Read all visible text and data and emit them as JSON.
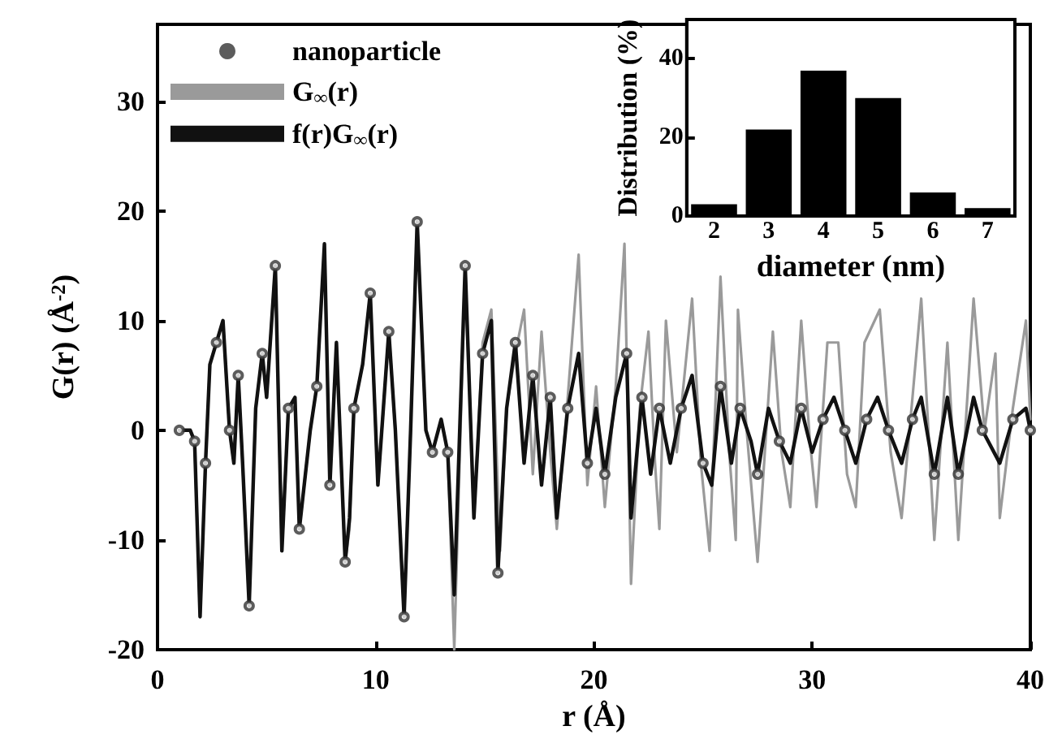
{
  "chart_data": [
    {
      "type": "line",
      "xlabel": "r (Å)",
      "ylabel": "G(r) (Å$^{-2}$)",
      "xlim": [
        0,
        40
      ],
      "ylim": [
        -20,
        37
      ],
      "xticks": [
        0,
        10,
        20,
        30,
        40
      ],
      "yticks": [
        -20,
        -10,
        0,
        10,
        20,
        30
      ],
      "legend": "top left",
      "series": [
        {
          "name": "nanoparticle",
          "type": "scatter",
          "marker": "circle",
          "color": "#333333",
          "x": [
            1.0,
            1.7,
            2.2,
            2.7,
            3.3,
            3.7,
            4.2,
            4.8,
            5.4,
            6.0,
            6.5,
            7.3,
            7.9,
            8.6,
            9.0,
            9.75,
            10.6,
            11.3,
            11.9,
            12.6,
            13.3,
            14.1,
            14.9,
            15.6,
            16.4,
            17.2,
            18.0,
            18.8,
            19.7,
            20.5,
            21.5,
            22.2,
            23.0,
            24.0,
            25.0,
            25.8,
            26.7,
            27.5,
            28.5,
            29.5,
            30.5,
            31.5,
            32.5,
            33.5,
            34.6,
            35.6,
            36.7,
            37.8,
            39.2,
            40.0
          ],
          "values": [
            0,
            -1,
            -3,
            8,
            0,
            5,
            -16,
            7,
            15,
            2,
            -9,
            4,
            -5,
            -12,
            2,
            12.5,
            9,
            -17,
            19,
            -2,
            -2,
            15,
            7,
            -13,
            8,
            5,
            3,
            2,
            -3,
            -4,
            7,
            3,
            2,
            2,
            -3,
            4,
            2,
            -4,
            -1,
            2,
            1,
            0,
            1,
            0,
            1,
            -4,
            -4,
            0,
            1,
            0
          ]
        },
        {
          "name": "G$_{∞}$(r)",
          "type": "line",
          "color": "#9a9a9a",
          "x": [
            1.0,
            1.5,
            1.7,
            1.95,
            2.2,
            2.4,
            2.7,
            3.0,
            3.3,
            3.5,
            3.7,
            3.9,
            4.2,
            4.5,
            4.8,
            5.0,
            5.4,
            5.7,
            6.0,
            6.3,
            6.5,
            7.0,
            7.3,
            7.65,
            7.9,
            8.2,
            8.6,
            8.8,
            9.0,
            9.4,
            9.75,
            10.1,
            10.6,
            10.9,
            11.3,
            11.6,
            11.9,
            12.3,
            12.6,
            13.0,
            13.3,
            13.6,
            14.1,
            14.5,
            14.9,
            15.3,
            15.7,
            16.0,
            16.4,
            16.8,
            17.2,
            17.6,
            18.0,
            18.3,
            18.8,
            19.3,
            19.7,
            20.1,
            20.5,
            21.0,
            21.4,
            21.7,
            22.1,
            22.5,
            22.8,
            23.0,
            23.3,
            23.8,
            24.5,
            24.9,
            25.3,
            25.8,
            26.2,
            26.5,
            26.6,
            27.0,
            27.5,
            28.2,
            28.6,
            29.0,
            29.5,
            29.9,
            30.2,
            30.7,
            31.2,
            31.6,
            32.0,
            32.4,
            33.1,
            33.6,
            34.1,
            34.6,
            35.0,
            35.6,
            36.2,
            36.7,
            37.4,
            37.9,
            38.4,
            38.6,
            39.2,
            39.8,
            40.0
          ],
          "values": [
            0,
            0,
            -1,
            -17,
            -3,
            6,
            8,
            10,
            0,
            -3,
            5,
            -3,
            -16,
            2,
            7,
            3,
            15,
            -11,
            2,
            3,
            -9,
            0,
            4,
            17,
            -5,
            8,
            -12,
            -9,
            2,
            6,
            12.5,
            -5,
            9,
            0,
            -17,
            0,
            19,
            0,
            -2,
            1,
            -2,
            -20,
            15,
            -8,
            8,
            11,
            -11,
            2,
            7,
            11,
            -4,
            9,
            -2,
            -9,
            3,
            16,
            -5,
            4,
            -7,
            4,
            17,
            -14,
            2,
            9,
            -3,
            -9,
            10,
            -2,
            12,
            -3,
            -11,
            14,
            -2,
            -10,
            11,
            0,
            -12,
            9,
            -2,
            -7,
            10,
            -1,
            -7,
            8,
            8,
            -4,
            -7,
            8,
            11,
            -2,
            -8,
            3,
            12,
            -10,
            8,
            -10,
            12,
            0,
            7,
            -8,
            2,
            10,
            1
          ]
        },
        {
          "name": "f(r)G$_{∞}$(r)",
          "type": "line",
          "color": "#111111",
          "x": [
            1.0,
            1.5,
            1.7,
            1.95,
            2.2,
            2.4,
            2.7,
            3.0,
            3.3,
            3.5,
            3.7,
            3.9,
            4.2,
            4.5,
            4.8,
            5.0,
            5.4,
            5.7,
            6.0,
            6.3,
            6.5,
            7.0,
            7.3,
            7.65,
            7.9,
            8.2,
            8.6,
            8.8,
            9.0,
            9.4,
            9.75,
            10.1,
            10.6,
            10.9,
            11.3,
            11.6,
            11.9,
            12.3,
            12.6,
            13.0,
            13.3,
            13.6,
            14.1,
            14.5,
            14.9,
            15.3,
            15.6,
            16.0,
            16.4,
            16.8,
            17.2,
            17.6,
            18.0,
            18.3,
            18.8,
            19.3,
            19.7,
            20.1,
            20.5,
            21.0,
            21.5,
            21.7,
            22.2,
            22.6,
            23.0,
            23.5,
            24.0,
            24.5,
            25.0,
            25.4,
            25.8,
            26.3,
            26.7,
            27.2,
            27.5,
            28.0,
            28.5,
            29.0,
            29.5,
            30.0,
            30.5,
            31.0,
            31.5,
            32.0,
            32.5,
            33.0,
            33.5,
            34.1,
            34.6,
            35.0,
            35.6,
            36.2,
            36.7,
            37.4,
            37.8,
            38.6,
            39.2,
            39.8,
            40.0
          ],
          "values": [
            0,
            0,
            -1,
            -17,
            -3,
            6,
            8,
            10,
            0,
            -3,
            5,
            -3,
            -16,
            2,
            7,
            3,
            15,
            -11,
            2,
            3,
            -9,
            0,
            4,
            17,
            -5,
            8,
            -12,
            -8,
            2,
            6,
            12.5,
            -5,
            9,
            0,
            -17,
            0,
            19,
            0,
            -2,
            1,
            -2,
            -15,
            15,
            -8,
            7,
            10,
            -13,
            2,
            8,
            -3,
            5,
            -5,
            3,
            -8,
            2,
            7,
            -3,
            2,
            -4,
            3,
            7,
            -8,
            3,
            -4,
            2,
            -3,
            2,
            5,
            -3,
            -5,
            4,
            -3,
            2,
            -1,
            -4,
            2,
            -1,
            -3,
            2,
            -2,
            1,
            3,
            0,
            -3,
            1,
            3,
            0,
            -3,
            1,
            3,
            -4,
            3,
            -4,
            3,
            0,
            -3,
            1,
            2,
            0
          ]
        }
      ]
    },
    {
      "type": "bar",
      "xlabel": "diameter (nm)",
      "ylabel": "Distribution (%)",
      "categories": [
        "2",
        "3",
        "4",
        "5",
        "6",
        "7"
      ],
      "values": [
        3,
        22,
        37,
        30,
        6,
        2
      ],
      "color": "#000000",
      "ylim": [
        0,
        50
      ],
      "yticks": [
        0,
        20,
        40
      ]
    }
  ]
}
